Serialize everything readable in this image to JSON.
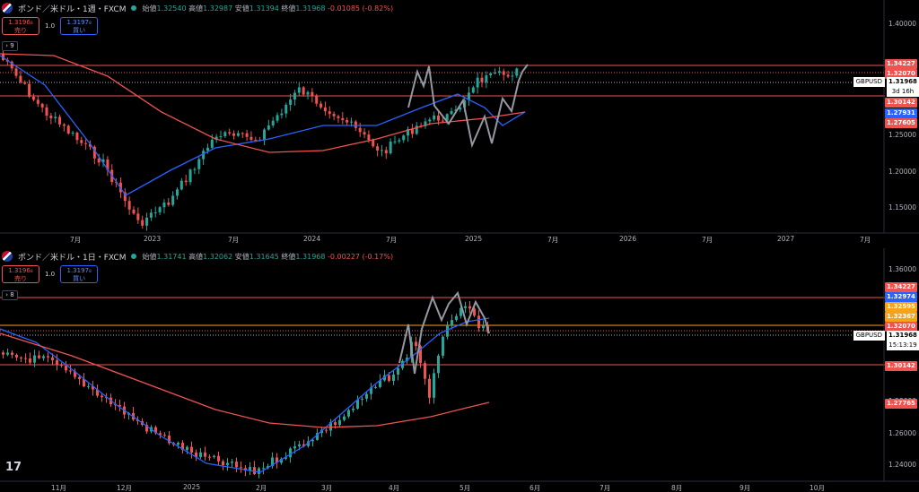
{
  "top": {
    "title": "ポンド／米ドル・1週・FXCM",
    "ohlc": [
      {
        "label": "始値",
        "value": "1.32540"
      },
      {
        "label": "高値",
        "value": "1.32987"
      },
      {
        "label": "安値",
        "value": "1.31394"
      },
      {
        "label": "終値",
        "value": "1.31968"
      }
    ],
    "change": "-0.01085 (-0.82%)",
    "sell": {
      "price": "1.3196₈",
      "label": "売り"
    },
    "buy": {
      "price": "1.3197₈",
      "label": "買い"
    },
    "spread": "1.0",
    "indicator_count": "9",
    "price_axis": [
      "1.40000",
      "1.35000",
      "1.30000",
      "1.25000",
      "1.20000",
      "1.15000"
    ],
    "time_axis": [
      "7月",
      "2023",
      "7月",
      "2024",
      "7月",
      "2025",
      "7月",
      "2026",
      "7月",
      "2027",
      "7月"
    ],
    "tags": [
      {
        "text": "1.34227",
        "color": "#ef5350"
      },
      {
        "text": "1.32070",
        "color": "#ef5350"
      },
      {
        "text": "1.30142",
        "color": "#ef5350"
      },
      {
        "text": "1.27931",
        "color": "#2962ff"
      },
      {
        "text": "1.27605",
        "color": "#ef5350"
      }
    ],
    "current": {
      "symbol": "GBPUSD",
      "price": "1.31968",
      "countdown": "3d 16h"
    }
  },
  "bottom": {
    "title": "ポンド／米ドル・1日・FXCM",
    "ohlc": [
      {
        "label": "始値",
        "value": "1.31741"
      },
      {
        "label": "高値",
        "value": "1.32062"
      },
      {
        "label": "安値",
        "value": "1.31645"
      },
      {
        "label": "終値",
        "value": "1.31968"
      }
    ],
    "change": "-0.00227 (-0.17%)",
    "sell": {
      "price": "1.3196₈",
      "label": "売り"
    },
    "buy": {
      "price": "1.3197₈",
      "label": "買い"
    },
    "spread": "1.0",
    "indicator_count": "8",
    "price_axis": [
      "1.36000",
      "1.34000",
      "1.32000",
      "1.30000",
      "1.28000",
      "1.26000",
      "1.24000"
    ],
    "time_axis": [
      "11月",
      "12月",
      "2025",
      "2月",
      "3月",
      "4月",
      "5月",
      "6月",
      "7月",
      "8月",
      "9月",
      "10月"
    ],
    "tags": [
      {
        "text": "1.34227",
        "color": "#ef5350"
      },
      {
        "text": "1.32974",
        "color": "#2962ff"
      },
      {
        "text": "1.32595",
        "color": "#f7a21b"
      },
      {
        "text": "1.32367",
        "color": "#f7a21b"
      },
      {
        "text": "1.32070",
        "color": "#ef5350"
      },
      {
        "text": "1.30142",
        "color": "#ef5350"
      },
      {
        "text": "1.27765",
        "color": "#ef5350"
      }
    ],
    "current": {
      "symbol": "GBPUSD",
      "price": "1.31968",
      "countdown": "15:13:19"
    }
  },
  "logo": "17",
  "colors": {
    "up": "#26a69a",
    "down": "#ef5350",
    "ma_fast": "#2962ff",
    "ma_slow": "#ef5350",
    "zigzag": "#9598a1"
  }
}
